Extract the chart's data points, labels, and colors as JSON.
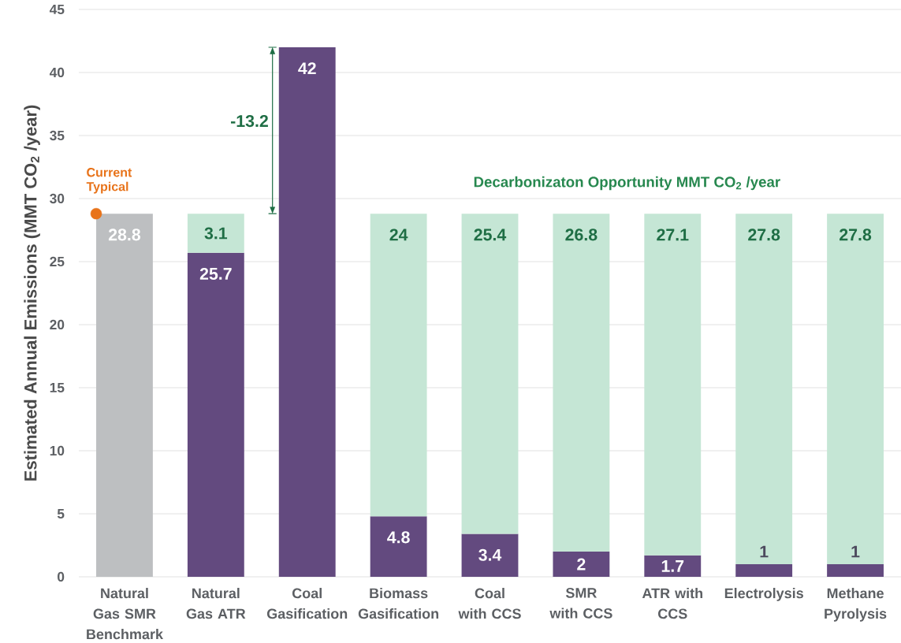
{
  "chart_data": {
    "type": "bar",
    "stacked": true,
    "categories": [
      "Natural Gas SMR Benchmark",
      "Natural Gas ATR",
      "Coal Gasification",
      "Biomass Gasification",
      "Coal with CCS",
      "SMR with CCS",
      "ATR with CCS",
      "Electrolysis",
      "Methane Pyrolysis"
    ],
    "series": [
      {
        "colors": [
          "#bdbfc1",
          "#634a7f",
          "#634a7f",
          "#634a7f",
          "#634a7f",
          "#634a7f",
          "#634a7f",
          "#634a7f",
          "#634a7f"
        ],
        "values": [
          28.8,
          25.7,
          42,
          4.8,
          3.4,
          2,
          1.7,
          1,
          1
        ],
        "value_labels": [
          "28.8",
          "25.7",
          "42",
          "4.8",
          "3.4",
          "2",
          "1.7",
          "1",
          "1"
        ]
      },
      {
        "name": "Decarbonizaton Opportunity MMT CO$_{2}$ /year",
        "color": "#c5e6d5",
        "values": [
          null,
          3.1,
          null,
          24,
          25.4,
          26.8,
          27.1,
          27.8,
          27.8
        ],
        "value_labels": [
          null,
          "3.1",
          null,
          "24",
          "25.4",
          "26.8",
          "27.1",
          "27.8",
          "27.8"
        ]
      },
      {
        "type": "scatter",
        "name": "Current Typical",
        "color": "#e8731a",
        "marker": "circle",
        "x": [
          "Natural Gas SMR Benchmark"
        ],
        "values": [
          28.8
        ]
      }
    ],
    "ylabel": "Estimated Annual Emissions (MMT CO$_{2}$ /year)",
    "ylim": [
      0,
      45
    ],
    "yticks": [
      0,
      5,
      10,
      15,
      20,
      25,
      30,
      35,
      40,
      45
    ],
    "grid": "y",
    "annotations": [
      "-13.2"
    ]
  }
}
